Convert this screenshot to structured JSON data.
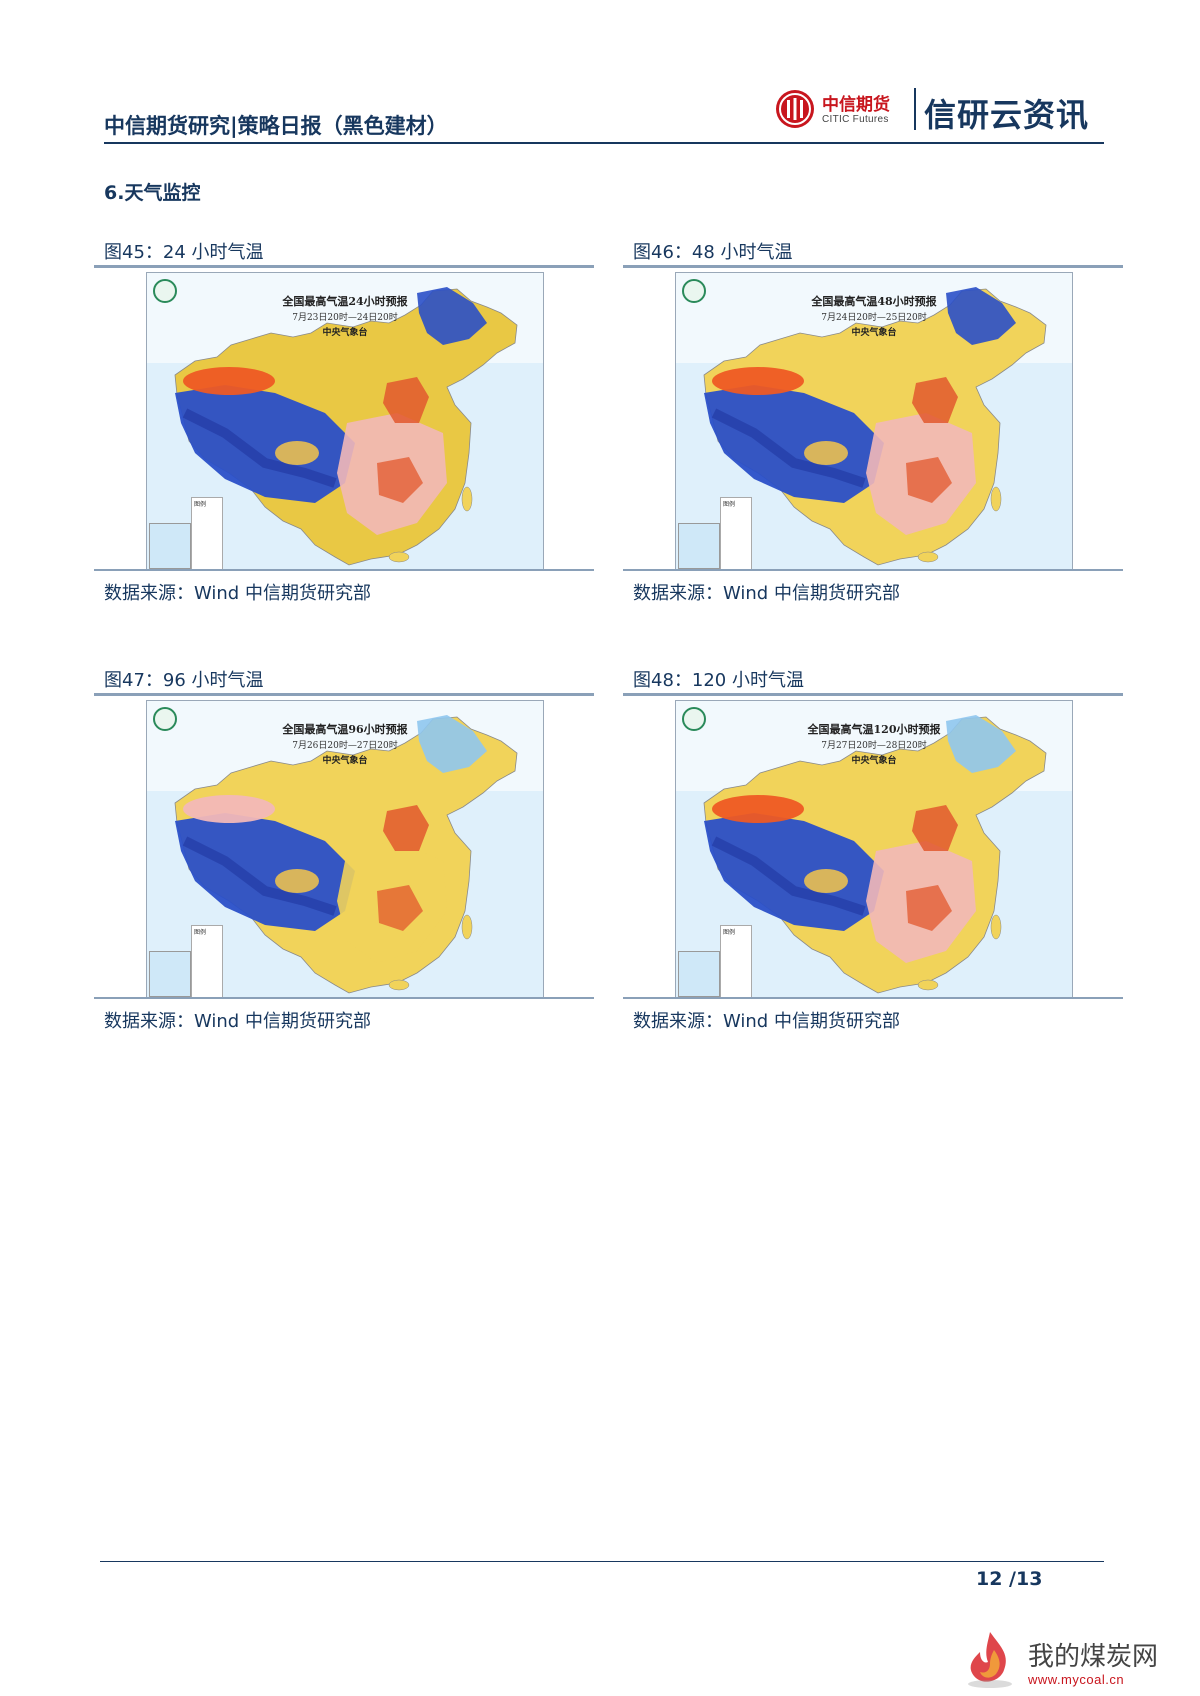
{
  "header": {
    "title": "中信期货研究|策略日报（黑色建材）",
    "logo_cn": "中信期货",
    "logo_en": "CITIC Futures",
    "brand": "信研云资讯",
    "accent_color": "#17375e",
    "logo_color": "#c8161e"
  },
  "section_title": "6.天气监控",
  "figures": [
    {
      "caption": "图45：24 小时气温",
      "map_title": "全国最高气温24小时预报",
      "map_period": "7月23日20时—24日20时",
      "map_org": "中央气象台",
      "source": "数据来源：Wind  中信期货研究部"
    },
    {
      "caption": "图46：48 小时气温",
      "map_title": "全国最高气温48小时预报",
      "map_period": "7月24日20时—25日20时",
      "map_org": "中央气象台",
      "source": "数据来源：Wind  中信期货研究部"
    },
    {
      "caption": "图47：96 小时气温",
      "map_title": "全国最高气温96小时预报",
      "map_period": "7月26日20时—27日20时",
      "map_org": "中央气象台",
      "source": "数据来源：Wind  中信期货研究部"
    },
    {
      "caption": "图48：120 小时气温",
      "map_title": "全国最高气温120小时预报",
      "map_period": "7月27日20时—28日20时",
      "map_org": "中央气象台",
      "source": "数据来源：Wind  中信期货研究部"
    }
  ],
  "map_legend_title": "图例",
  "footer": {
    "page_number": "12  /13"
  },
  "watermark": {
    "text": "我的煤炭网",
    "url": "www.mycoal.cn"
  }
}
